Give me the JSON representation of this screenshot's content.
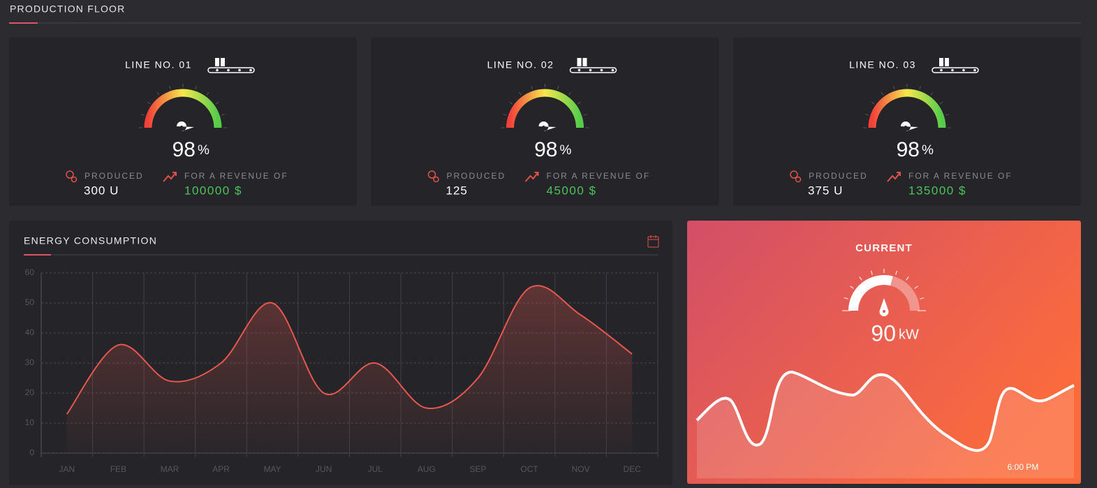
{
  "header": {
    "title": "PRODUCTION FLOOR"
  },
  "lines": [
    {
      "title": "LINE NO. 01",
      "percent": 98,
      "percent_unit": "%",
      "produced_label": "PRODUCED",
      "produced": "300 U",
      "revenue_label": "FOR A REVENUE OF",
      "revenue": "100000 $"
    },
    {
      "title": "LINE NO. 02",
      "percent": 98,
      "percent_unit": "%",
      "produced_label": "PRODUCED",
      "produced": "125",
      "revenue_label": "FOR A REVENUE OF",
      "revenue": "45000 $"
    },
    {
      "title": "LINE NO. 03",
      "percent": 98,
      "percent_unit": "%",
      "produced_label": "PRODUCED",
      "produced": "375 U",
      "revenue_label": "FOR A REVENUE OF",
      "revenue": "135000 $"
    }
  ],
  "energy": {
    "title": "ENERGY CONSUMPTION",
    "chart": {
      "type": "line",
      "categories": [
        "JAN",
        "FEB",
        "MAR",
        "APR",
        "MAY",
        "JUN",
        "JUL",
        "AUG",
        "SEP",
        "OCT",
        "NOV",
        "DEC"
      ],
      "values": [
        13,
        36,
        24,
        30,
        50,
        20,
        30,
        15,
        25,
        55,
        46,
        33
      ],
      "color": "#e8574f",
      "ylim": [
        0,
        60
      ],
      "yticks": [
        0,
        10,
        20,
        30,
        40,
        50,
        60
      ],
      "grid": true
    }
  },
  "current": {
    "title": "CURRENT",
    "value": 90,
    "unit": "kW",
    "time": "6:00 PM"
  }
}
